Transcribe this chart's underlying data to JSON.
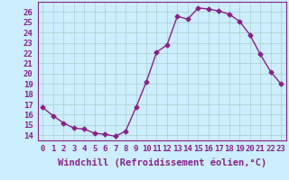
{
  "x": [
    0,
    1,
    2,
    3,
    4,
    5,
    6,
    7,
    8,
    9,
    10,
    11,
    12,
    13,
    14,
    15,
    16,
    17,
    18,
    19,
    20,
    21,
    22,
    23
  ],
  "y": [
    16.7,
    15.9,
    15.2,
    14.7,
    14.6,
    14.2,
    14.1,
    13.9,
    14.4,
    16.7,
    19.2,
    22.1,
    22.8,
    25.6,
    25.3,
    26.4,
    26.3,
    26.1,
    25.8,
    25.1,
    23.8,
    21.9,
    20.2,
    19.0
  ],
  "line_color": "#882288",
  "marker": "D",
  "markersize": 2.5,
  "linewidth": 1.0,
  "xlabel": "Windchill (Refroidissement éolien,°C)",
  "xlabel_fontsize": 7.5,
  "xlim": [
    -0.5,
    23.5
  ],
  "ylim": [
    13.5,
    27.0
  ],
  "yticks": [
    14,
    15,
    16,
    17,
    18,
    19,
    20,
    21,
    22,
    23,
    24,
    25,
    26
  ],
  "xtick_labels": [
    "0",
    "1",
    "2",
    "3",
    "4",
    "5",
    "6",
    "7",
    "8",
    "9",
    "10",
    "11",
    "12",
    "13",
    "14",
    "15",
    "16",
    "17",
    "18",
    "19",
    "20",
    "21",
    "22",
    "23"
  ],
  "bg_color": "#cceeff",
  "grid_color": "#aacccc",
  "tick_fontsize": 6.5,
  "label_color": "#882288"
}
